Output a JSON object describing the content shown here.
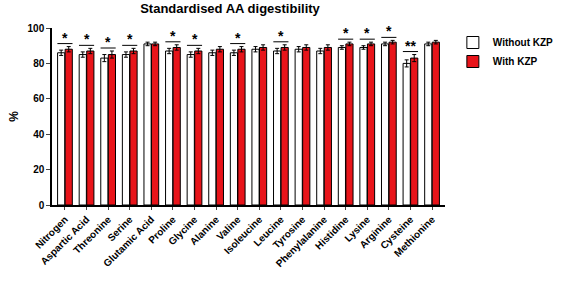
{
  "chart_data": {
    "type": "bar",
    "title": "Standardised AA digestibility",
    "y_label": "%",
    "categories": [
      "Nitrogen",
      "Aspartic Acid",
      "Threonine",
      "Serine",
      "Glutamic Acid",
      "Proline",
      "Glycine",
      "Alanine",
      "Valine",
      "Isoleucine",
      "Leucine",
      "Tyrosine",
      "Phenylalanine",
      "Histidine",
      "Lysine",
      "Arginine",
      "Cysteine",
      "Methionine"
    ],
    "series": [
      {
        "name": "Without KZP",
        "color": "#ffffff",
        "values": [
          86,
          85,
          83,
          85,
          91,
          87,
          85,
          86,
          86,
          88,
          87,
          88,
          87,
          89,
          89,
          91,
          80,
          91
        ],
        "errors": [
          1.5,
          1.5,
          2,
          1.5,
          1,
          1.5,
          1.5,
          1.5,
          1.5,
          1.5,
          1.5,
          1.5,
          1.5,
          1,
          1,
          1,
          2,
          1
        ]
      },
      {
        "name": "With KZP",
        "color": "#e8141a",
        "values": [
          88,
          87,
          85,
          87,
          91,
          89,
          87,
          88,
          88,
          89,
          89,
          89,
          89,
          91,
          91,
          92,
          83,
          92
        ],
        "errors": [
          1.5,
          1.5,
          2,
          1.5,
          1,
          1.5,
          1.5,
          1.5,
          1.5,
          1.5,
          1.5,
          1.5,
          1.5,
          1,
          1,
          1,
          2,
          1
        ]
      }
    ],
    "significance": [
      "*",
      "*",
      "*",
      "*",
      null,
      "*",
      "*",
      null,
      "*",
      null,
      "*",
      null,
      null,
      "*",
      "*",
      "*",
      "**",
      null
    ],
    "ylim": [
      0,
      100
    ],
    "yticks": [
      0,
      20,
      40,
      60,
      80,
      100
    ],
    "grid": false,
    "legend": "top right"
  }
}
